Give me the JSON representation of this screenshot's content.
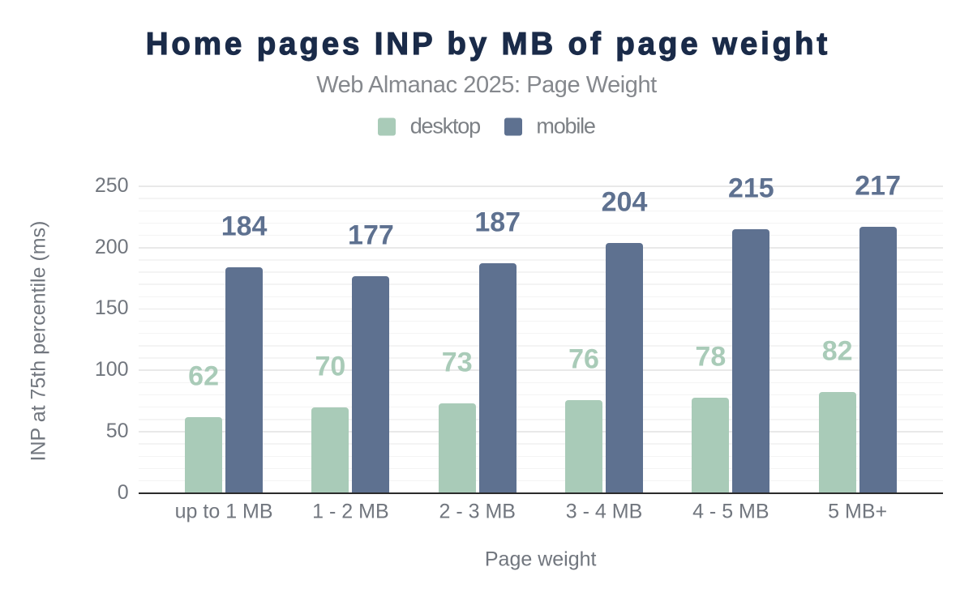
{
  "chart_data": {
    "type": "bar",
    "title": "Home pages INP by MB of page weight",
    "subtitle": "Web Almanac 2025: Page Weight",
    "xlabel": "Page weight",
    "ylabel": "INP at 75th percentile (ms)",
    "categories": [
      "up to 1 MB",
      "1 - 2 MB",
      "2 - 3 MB",
      "3 - 4 MB",
      "4 - 5 MB",
      "5 MB+"
    ],
    "series": [
      {
        "name": "desktop",
        "color": "#a9cbb8",
        "values": [
          62,
          70,
          73,
          76,
          78,
          82
        ]
      },
      {
        "name": "mobile",
        "color": "#5e7190",
        "values": [
          184,
          177,
          187,
          204,
          215,
          217
        ]
      }
    ],
    "ylim": [
      0,
      250
    ],
    "yticks": [
      0,
      50,
      100,
      150,
      200,
      250
    ],
    "y_minor_step": 10,
    "grid": "on",
    "legend_position": "top",
    "bar_value_labels": "above"
  },
  "colors": {
    "background": "#ffffff",
    "title_text": "#1a2b49",
    "subtitle_text": "#85888d",
    "legend_text": "#7c8085",
    "tick_text": "#71767e",
    "axis_title_text": "#71767e",
    "axis_line": "#2b2b2b",
    "grid_major": "#e9e9e9",
    "grid_minor": "#f4f4f4"
  }
}
